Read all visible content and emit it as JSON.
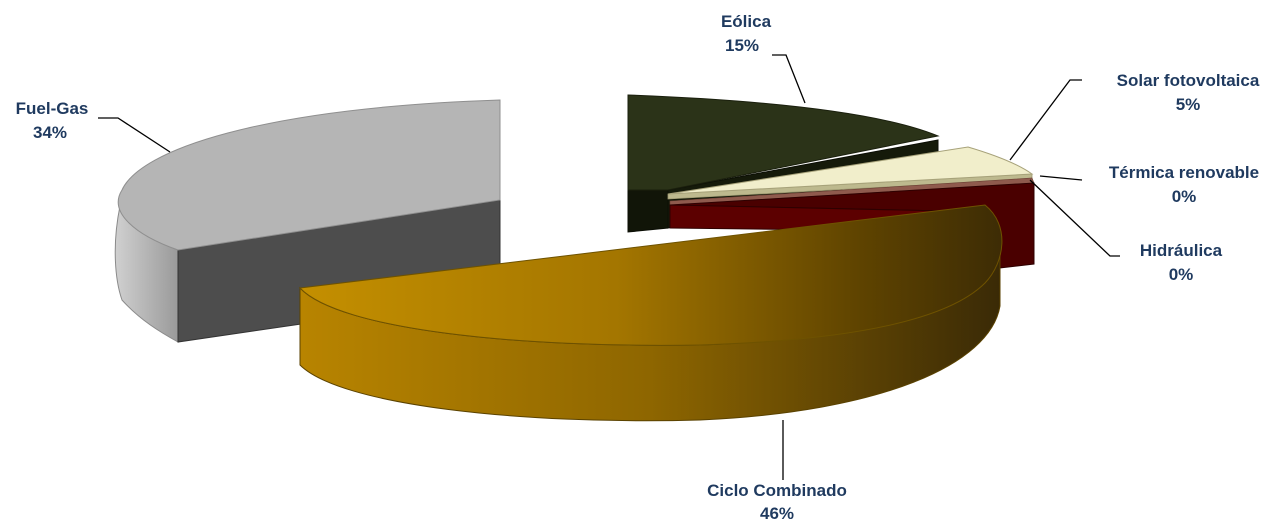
{
  "chart_data": {
    "type": "pie",
    "style": "3d-exploded",
    "title": "",
    "slices": [
      {
        "label": "Eólica",
        "pct_label": "15%",
        "value": 15,
        "color": "#2b3318"
      },
      {
        "label": "Solar fotovoltaica",
        "pct_label": "5%",
        "value": 5,
        "color": "#f1eecb"
      },
      {
        "label": "Térmica renovable",
        "pct_label": "0%",
        "value": 0,
        "color": "#8f5a4d"
      },
      {
        "label": "Hidráulica",
        "pct_label": "0%",
        "value": 0,
        "color": "#5c0000"
      },
      {
        "label": "Ciclo Combinado",
        "pct_label": "46%",
        "value": 46,
        "color": "#b98a00"
      },
      {
        "label": "Fuel-Gas",
        "pct_label": "34%",
        "value": 34,
        "color": "#b5b5b5"
      }
    ],
    "label_color": "#1f3a5f"
  }
}
